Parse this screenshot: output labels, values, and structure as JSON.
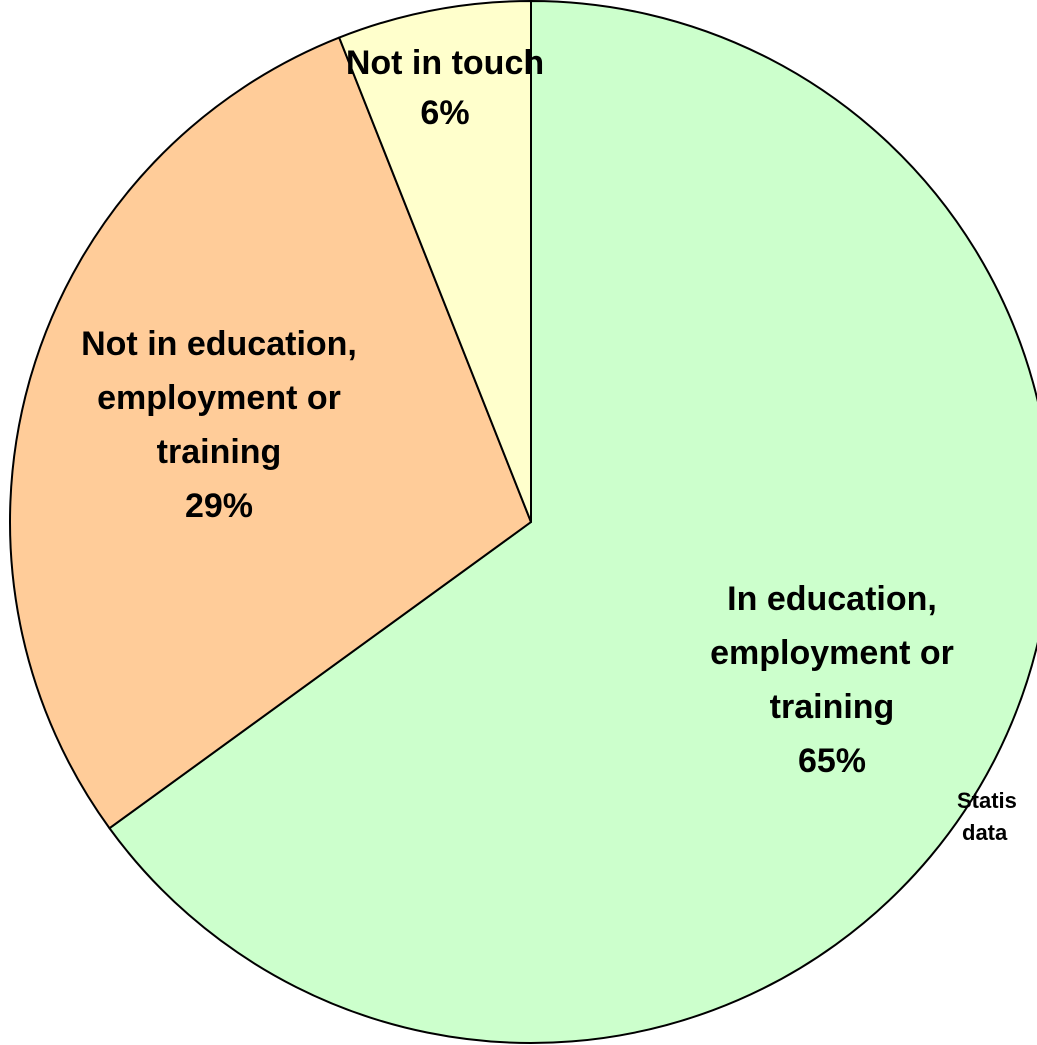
{
  "chart_data": {
    "type": "pie",
    "title": "",
    "slices": [
      {
        "label_lines": [
          "In education,",
          "employment or",
          "training"
        ],
        "value_text": "65%",
        "value": 65,
        "color": "#ccffcc"
      },
      {
        "label_lines": [
          "Not in education,",
          "employment or",
          "training"
        ],
        "value_text": "29%",
        "value": 29,
        "color": "#ffcc99"
      },
      {
        "label_lines": [
          "Not in touch"
        ],
        "value_text": "6%",
        "value": 6,
        "color": "#ffffcc"
      }
    ],
    "start_angle": "12 o'clock",
    "direction": "clockwise",
    "legend": "none"
  },
  "footnote": {
    "line1": "Statis",
    "line2": "data"
  }
}
